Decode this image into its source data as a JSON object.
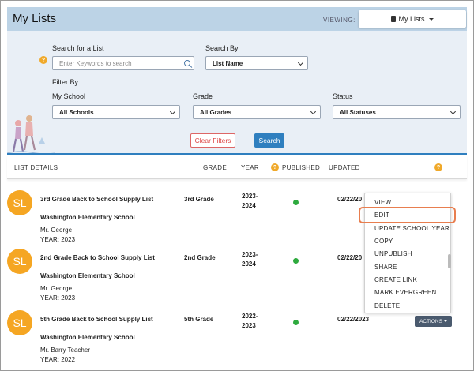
{
  "header": {
    "title": "My Lists",
    "viewing_label": "VIEWING:",
    "viewing_value": "My Lists"
  },
  "filters": {
    "search_label": "Search for a List",
    "search_placeholder": "Enter Keywords to search",
    "search_by_label": "Search By",
    "search_by_value": "List Name",
    "filter_by_label": "Filter By:",
    "school_label": "My School",
    "school_value": "All Schools",
    "grade_label": "Grade",
    "grade_value": "All Grades",
    "status_label": "Status",
    "status_value": "All Statuses",
    "clear_label": "Clear Filters",
    "search_button": "Search"
  },
  "columns": {
    "details": "LIST DETAILS",
    "grade": "GRADE",
    "year": "YEAR",
    "published": "PUBLISHED",
    "updated": "UPDATED"
  },
  "rows": [
    {
      "initials": "SL",
      "title": "3rd Grade Back to School Supply List",
      "school": "Washington Elementary School",
      "teacher": "Mr. George",
      "year_text": "YEAR: 2023",
      "grade": "3rd Grade",
      "school_year_1": "2023-",
      "school_year_2": "2024",
      "updated": "02/22/20"
    },
    {
      "initials": "SL",
      "title": "2nd Grade Back to School Supply List",
      "school": "Washington Elementary School",
      "teacher": "Mr. George",
      "year_text": "YEAR: 2023",
      "grade": "2nd Grade",
      "school_year_1": "2023-",
      "school_year_2": "2024",
      "updated": "02/22/20"
    },
    {
      "initials": "SL",
      "title": "5th Grade Back to School Supply List",
      "school": "Washington Elementary School",
      "teacher": "Mr. Barry Teacher",
      "year_text": "YEAR: 2022",
      "grade": "5th Grade",
      "school_year_1": "2022-",
      "school_year_2": "2023",
      "updated": "02/22/2023",
      "actions_label": "ACTIONS"
    }
  ],
  "menu": {
    "items": [
      "VIEW",
      "EDIT",
      "UPDATE SCHOOL YEAR",
      "COPY",
      "UNPUBLISH",
      "SHARE",
      "CREATE LINK",
      "MARK EVERGREEN",
      "DELETE"
    ]
  },
  "icons": {
    "help": "?",
    "help_color": "#f0a92a",
    "avatar_color": "#f5a623",
    "published_color": "#2eaa3e",
    "accent": "#2f7fbf"
  }
}
